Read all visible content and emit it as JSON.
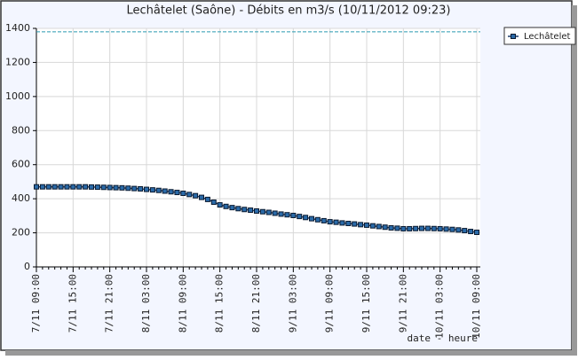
{
  "chart_data": {
    "type": "line",
    "title": "Lechâtelet (Saône) - Débits en m3/s (10/11/2012 09:23)",
    "x_label": "date - heure",
    "categories": [
      "7/11 09:00",
      null,
      null,
      null,
      null,
      null,
      "7/11 15:00",
      null,
      null,
      null,
      null,
      null,
      "7/11 21:00",
      null,
      null,
      null,
      null,
      null,
      "8/11 03:00",
      null,
      null,
      null,
      null,
      null,
      "8/11 09:00",
      null,
      null,
      null,
      null,
      null,
      "8/11 15:00",
      null,
      null,
      null,
      null,
      null,
      "8/11 21:00",
      null,
      null,
      null,
      null,
      null,
      "9/11 03:00",
      null,
      null,
      null,
      null,
      null,
      "9/11 09:00",
      null,
      null,
      null,
      null,
      null,
      "9/11 15:00",
      null,
      null,
      null,
      null,
      null,
      "9/11 21:00",
      null,
      null,
      null,
      null,
      null,
      "10/11 03:00",
      null,
      null,
      null,
      null,
      null,
      "10/11 09:00"
    ],
    "series": [
      {
        "name": "Lechâtelet",
        "color": "#2a6aa8",
        "values": [
          470,
          470,
          470,
          470,
          470,
          470,
          470,
          470,
          470,
          469,
          468,
          467,
          466,
          465,
          464,
          462,
          460,
          458,
          455,
          452,
          449,
          445,
          441,
          437,
          432,
          425,
          418,
          408,
          396,
          380,
          364,
          355,
          348,
          342,
          337,
          333,
          328,
          324,
          320,
          315,
          310,
          306,
          302,
          296,
          290,
          283,
          277,
          271,
          265,
          262,
          258,
          255,
          252,
          248,
          245,
          241,
          237,
          233,
          229,
          227,
          224,
          224,
          225,
          226,
          226,
          225,
          224,
          222,
          220,
          217,
          213,
          208,
          203
        ]
      }
    ],
    "reference_line": 1380,
    "ylim": [
      0,
      1400
    ],
    "yticks": [
      0,
      200,
      400,
      600,
      800,
      1000,
      1200,
      1400
    ],
    "grid": true,
    "legend": "right"
  }
}
